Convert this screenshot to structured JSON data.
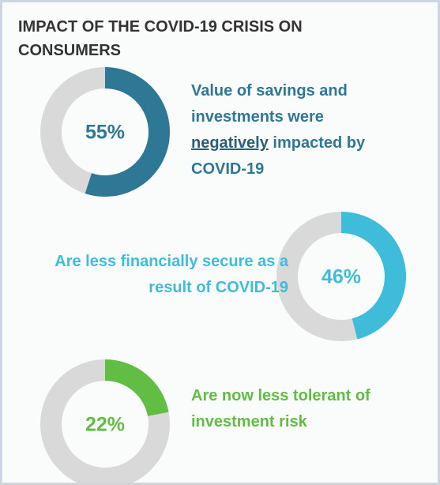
{
  "title": "IMPACT OF THE COVID-19 CRISIS ON CONSUMERS",
  "chart_data": [
    {
      "type": "donut",
      "values": [
        55
      ],
      "value_labels": [
        "55%"
      ],
      "color": "#2e7896",
      "label": [
        "Value of savings and investments were ",
        "negatively",
        " impacted by COVID-19"
      ],
      "underline": [
        1
      ],
      "side": "right"
    },
    {
      "type": "donut",
      "values": [
        46
      ],
      "value_labels": [
        "46%"
      ],
      "color": "#3fbcd9",
      "label": [
        "Are less financially secure as a result of COVID-19"
      ],
      "underline": [],
      "side": "left"
    },
    {
      "type": "donut",
      "values": [
        22
      ],
      "value_labels": [
        "22%"
      ],
      "color": "#62bd45",
      "label": [
        "Are now less tolerant of investment risk"
      ],
      "underline": [],
      "side": "right"
    }
  ]
}
